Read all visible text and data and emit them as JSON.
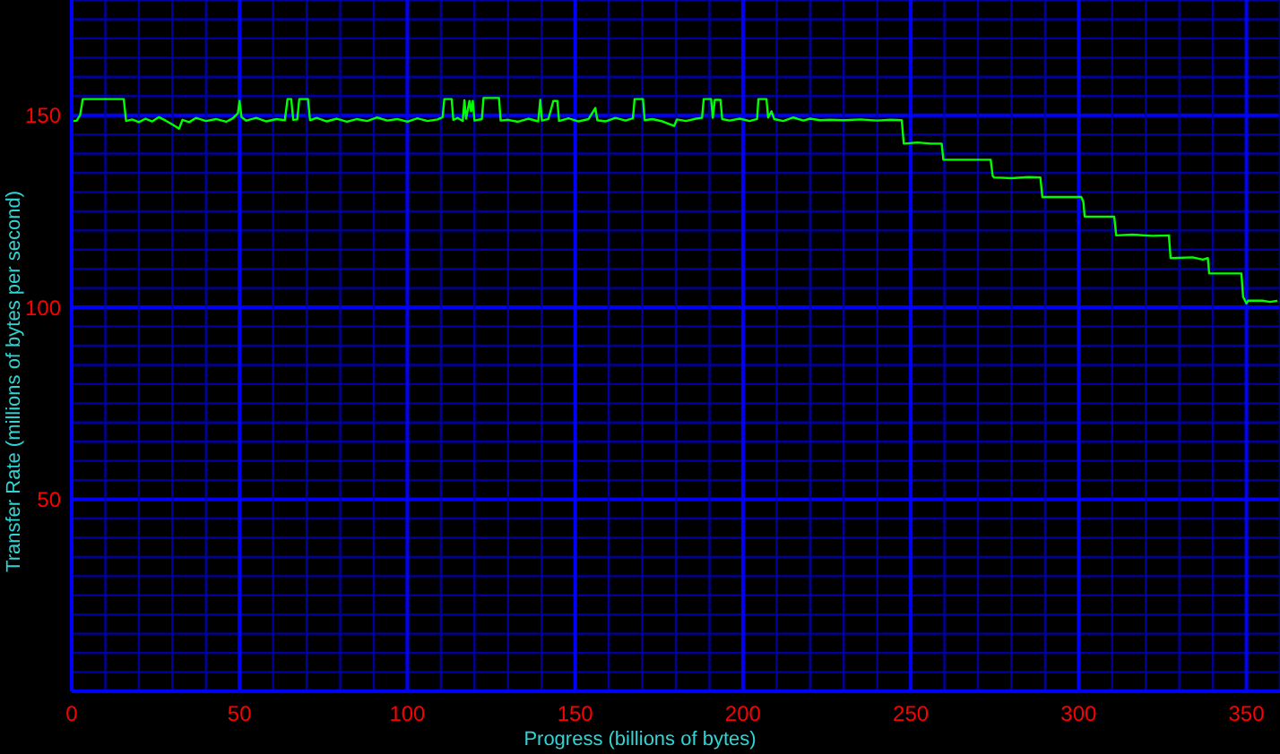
{
  "chart_data": {
    "type": "line",
    "xlabel": "Progress (billions of bytes)",
    "ylabel": "Transfer Rate (millions of bytes per second)",
    "x": [
      0,
      1.5,
      2.5,
      3.3,
      8,
      15.5,
      16.2,
      18,
      20,
      22,
      24,
      26,
      28,
      30,
      32,
      33,
      35,
      37,
      40,
      43,
      46,
      48,
      49.5,
      50,
      50.6,
      52,
      55,
      58,
      61,
      63.5,
      64.3,
      65.4,
      66,
      67.2,
      67.8,
      70.4,
      71,
      73,
      76,
      79,
      82,
      85,
      88,
      91,
      94,
      97,
      100,
      103,
      106,
      109,
      110.5,
      111,
      113.2,
      113.7,
      115,
      116.5,
      117,
      117.5,
      118.5,
      119,
      119.5,
      120,
      122.2,
      122.7,
      127.3,
      127.8,
      130,
      133,
      136,
      139,
      139.6,
      140.1,
      142,
      143.5,
      144.7,
      145.2,
      148,
      151,
      154,
      156,
      156.6,
      159,
      162,
      165,
      167.2,
      167.7,
      170.2,
      170.7,
      173,
      176,
      179.5,
      180.3,
      183,
      186,
      187.8,
      188.3,
      190.5,
      191,
      191.6,
      193.3,
      193.8,
      196,
      199,
      202,
      204.2,
      204.6,
      207,
      207.5,
      208.5,
      209.3,
      212,
      215,
      218,
      220,
      223,
      226,
      230,
      235,
      240,
      244,
      247.3,
      247.9,
      252,
      256,
      259.2,
      259.7,
      273.8,
      274.4,
      274.8,
      280,
      285,
      288.6,
      289.2,
      300.8,
      301.4,
      301.8,
      310.6,
      311.2,
      316,
      322,
      326.9,
      327.4,
      334,
      337,
      338.5,
      338.9,
      348.5,
      349,
      350,
      350.5,
      355,
      357,
      359.2
    ],
    "values": [
      148.4,
      148.6,
      150,
      154.2,
      154.2,
      154.2,
      148.5,
      148.9,
      148.2,
      149.1,
      148.4,
      149.5,
      148.6,
      147.6,
      146.5,
      148.8,
      148.2,
      149.3,
      148.5,
      149,
      148.3,
      149.2,
      150.5,
      153.7,
      149.5,
      148.6,
      149.3,
      148.4,
      149,
      148.7,
      154.2,
      154.2,
      148.8,
      148.9,
      154.2,
      154.2,
      148.7,
      149.3,
      148.4,
      149.1,
      148.3,
      149,
      148.5,
      149.4,
      148.6,
      149,
      148.3,
      149.2,
      148.5,
      148.9,
      149.5,
      154.2,
      154.2,
      148.8,
      149.3,
      148.5,
      153.9,
      149.1,
      153.7,
      151,
      153.7,
      148.6,
      149,
      154.5,
      154.5,
      148.6,
      148.8,
      148.3,
      149.1,
      148.4,
      154,
      148.6,
      149,
      153.7,
      153.7,
      148.5,
      149.2,
      148.4,
      149,
      151.9,
      148.7,
      148.4,
      149.3,
      148.6,
      149.2,
      154.2,
      154.2,
      148.7,
      149,
      148.4,
      147.2,
      148.9,
      148.5,
      149.1,
      149.3,
      154.2,
      154.2,
      149.3,
      154,
      154,
      149,
      148.6,
      149.1,
      148.5,
      149,
      154.2,
      154.2,
      149.4,
      151,
      149,
      148.5,
      149.4,
      148.6,
      149.1,
      148.7,
      148.8,
      148.7,
      148.9,
      148.6,
      148.8,
      148.7,
      142.6,
      142.9,
      142.6,
      142.6,
      138.4,
      138.4,
      134.2,
      133.8,
      133.6,
      133.9,
      133.8,
      128.7,
      128.7,
      127.5,
      123.6,
      123.6,
      118.7,
      118.9,
      118.6,
      118.7,
      112.8,
      113,
      112.4,
      112.8,
      108.8,
      108.8,
      102.7,
      101,
      101.7,
      101.7,
      101.4,
      101.7
    ],
    "color": "#00ff00",
    "xlim": [
      0,
      360
    ],
    "ylim": [
      0,
      180
    ],
    "xticks": [
      0,
      {
        "value": 10,
        "label": null
      },
      {
        "value": 20,
        "label": null
      },
      {
        "value": 30,
        "label": null
      },
      {
        "value": 40,
        "label": null
      },
      50,
      {
        "value": 60,
        "label": null
      },
      {
        "value": 70,
        "label": null
      },
      {
        "value": 80,
        "label": null
      },
      {
        "value": 90,
        "label": null
      },
      100,
      {
        "value": 110,
        "label": null
      },
      {
        "value": 120,
        "label": null
      },
      {
        "value": 130,
        "label": null
      },
      {
        "value": 140,
        "label": null
      },
      150,
      {
        "value": 160,
        "label": null
      },
      {
        "value": 170,
        "label": null
      },
      {
        "value": 180,
        "label": null
      },
      {
        "value": 190,
        "label": null
      },
      200,
      {
        "value": 210,
        "label": null
      },
      {
        "value": 220,
        "label": null
      },
      {
        "value": 230,
        "label": null
      },
      {
        "value": 240,
        "label": null
      },
      250,
      {
        "value": 260,
        "label": null
      },
      {
        "value": 270,
        "label": null
      },
      {
        "value": 280,
        "label": null
      },
      {
        "value": 290,
        "label": null
      },
      300,
      {
        "value": 310,
        "label": null
      },
      {
        "value": 320,
        "label": null
      },
      {
        "value": 330,
        "label": null
      },
      {
        "value": 340,
        "label": null
      },
      350
    ],
    "yticks": [
      {
        "value": 0,
        "label": null
      },
      {
        "value": 5,
        "label": null
      },
      {
        "value": 10,
        "label": null
      },
      {
        "value": 15,
        "label": null
      },
      {
        "value": 20,
        "label": null
      },
      {
        "value": 25,
        "label": null
      },
      {
        "value": 30,
        "label": null
      },
      {
        "value": 35,
        "label": null
      },
      {
        "value": 40,
        "label": null
      },
      {
        "value": 45,
        "label": null
      },
      50,
      {
        "value": 55,
        "label": null
      },
      {
        "value": 60,
        "label": null
      },
      {
        "value": 65,
        "label": null
      },
      {
        "value": 70,
        "label": null
      },
      {
        "value": 75,
        "label": null
      },
      {
        "value": 80,
        "label": null
      },
      {
        "value": 85,
        "label": null
      },
      {
        "value": 90,
        "label": null
      },
      {
        "value": 95,
        "label": null
      },
      100,
      {
        "value": 105,
        "label": null
      },
      {
        "value": 110,
        "label": null
      },
      {
        "value": 115,
        "label": null
      },
      {
        "value": 120,
        "label": null
      },
      {
        "value": 125,
        "label": null
      },
      {
        "value": 130,
        "label": null
      },
      {
        "value": 135,
        "label": null
      },
      {
        "value": 140,
        "label": null
      },
      {
        "value": 145,
        "label": null
      },
      150,
      {
        "value": 155,
        "label": null
      },
      {
        "value": 160,
        "label": null
      },
      {
        "value": 165,
        "label": null
      },
      {
        "value": 170,
        "label": null
      },
      {
        "value": 175,
        "label": null
      }
    ],
    "grid": true,
    "marker": "none",
    "line_style": "solid"
  }
}
